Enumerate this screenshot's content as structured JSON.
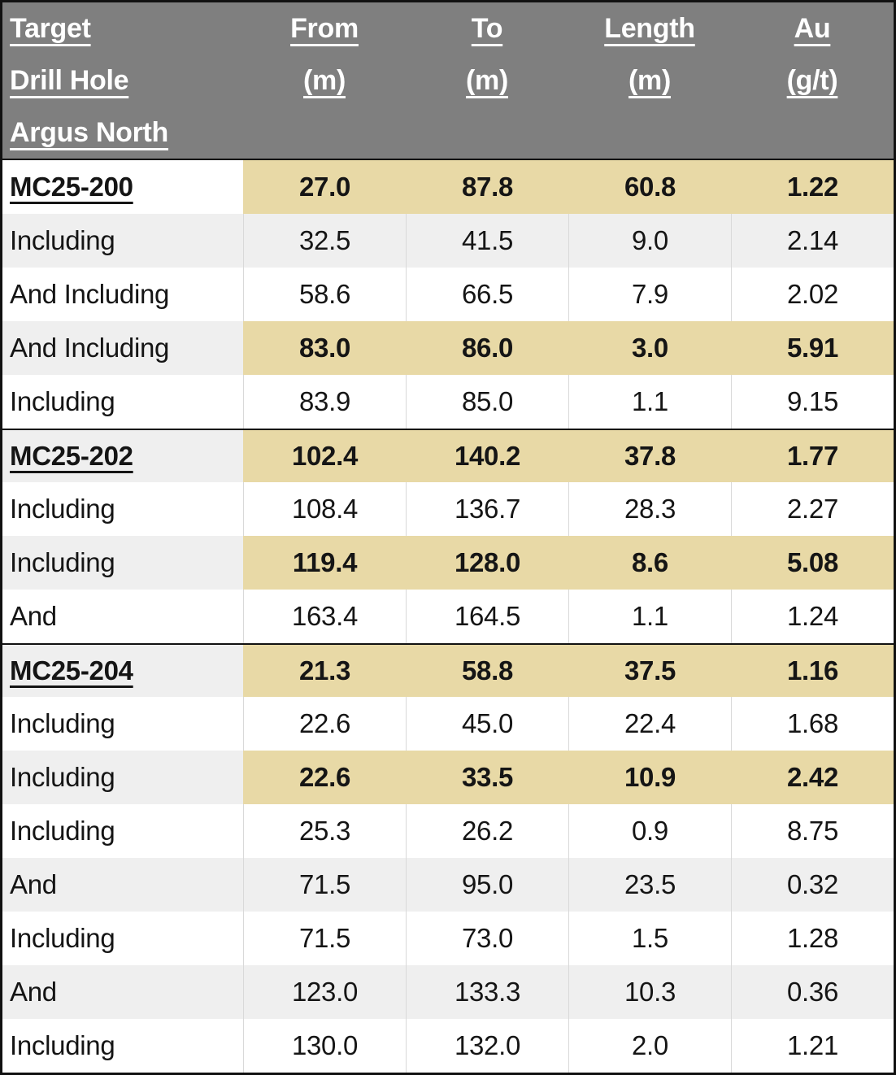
{
  "table": {
    "header": {
      "col1_line1": "Target",
      "col1_line2": "Drill Hole",
      "col1_line3": "Argus North",
      "cols": [
        {
          "title": "From",
          "unit": "(m)"
        },
        {
          "title": "To",
          "unit": "(m)"
        },
        {
          "title": "Length",
          "unit": "(m)"
        },
        {
          "title": "Au",
          "unit": "(g/t)"
        }
      ]
    },
    "colors": {
      "header_bg": "#7f7f7f",
      "band_gray": "#efefef",
      "highlight_tan": "#e8d9a6",
      "gridline": "#d9d9d9",
      "border": "#111111"
    },
    "rows": [
      {
        "label": "MC25-200",
        "kind": "hole",
        "band": "white",
        "highlight": true,
        "divider": false,
        "from": "27.0",
        "to": "87.8",
        "length": "60.8",
        "au": "1.22"
      },
      {
        "label": "Including",
        "kind": "sub",
        "band": "gray",
        "highlight": false,
        "divider": false,
        "from": "32.5",
        "to": "41.5",
        "length": "9.0",
        "au": "2.14"
      },
      {
        "label": "And Including",
        "kind": "sub",
        "band": "white",
        "highlight": false,
        "divider": false,
        "from": "58.6",
        "to": "66.5",
        "length": "7.9",
        "au": "2.02"
      },
      {
        "label": "And Including",
        "kind": "sub",
        "band": "gray",
        "highlight": true,
        "divider": false,
        "from": "83.0",
        "to": "86.0",
        "length": "3.0",
        "au": "5.91"
      },
      {
        "label": "Including",
        "kind": "sub",
        "band": "white",
        "highlight": false,
        "divider": false,
        "from": "83.9",
        "to": "85.0",
        "length": "1.1",
        "au": "9.15"
      },
      {
        "label": "MC25-202",
        "kind": "hole",
        "band": "gray",
        "highlight": true,
        "divider": true,
        "from": "102.4",
        "to": "140.2",
        "length": "37.8",
        "au": "1.77"
      },
      {
        "label": "Including",
        "kind": "sub",
        "band": "white",
        "highlight": false,
        "divider": false,
        "from": "108.4",
        "to": "136.7",
        "length": "28.3",
        "au": "2.27"
      },
      {
        "label": "Including",
        "kind": "sub",
        "band": "gray",
        "highlight": true,
        "divider": false,
        "from": "119.4",
        "to": "128.0",
        "length": "8.6",
        "au": "5.08"
      },
      {
        "label": "And",
        "kind": "sub",
        "band": "white",
        "highlight": false,
        "divider": false,
        "from": "163.4",
        "to": "164.5",
        "length": "1.1",
        "au": "1.24"
      },
      {
        "label": "MC25-204",
        "kind": "hole",
        "band": "gray",
        "highlight": true,
        "divider": true,
        "from": "21.3",
        "to": "58.8",
        "length": "37.5",
        "au": "1.16"
      },
      {
        "label": "Including",
        "kind": "sub",
        "band": "white",
        "highlight": false,
        "divider": false,
        "from": "22.6",
        "to": "45.0",
        "length": "22.4",
        "au": "1.68"
      },
      {
        "label": "Including",
        "kind": "sub",
        "band": "gray",
        "highlight": true,
        "divider": false,
        "from": "22.6",
        "to": "33.5",
        "length": "10.9",
        "au": "2.42"
      },
      {
        "label": "Including",
        "kind": "sub",
        "band": "white",
        "highlight": false,
        "divider": false,
        "from": "25.3",
        "to": "26.2",
        "length": "0.9",
        "au": "8.75"
      },
      {
        "label": "And",
        "kind": "sub",
        "band": "gray",
        "highlight": false,
        "divider": false,
        "from": "71.5",
        "to": "95.0",
        "length": "23.5",
        "au": "0.32"
      },
      {
        "label": "Including",
        "kind": "sub",
        "band": "white",
        "highlight": false,
        "divider": false,
        "from": "71.5",
        "to": "73.0",
        "length": "1.5",
        "au": "1.28"
      },
      {
        "label": "And",
        "kind": "sub",
        "band": "gray",
        "highlight": false,
        "divider": false,
        "from": "123.0",
        "to": "133.3",
        "length": "10.3",
        "au": "0.36"
      },
      {
        "label": "Including",
        "kind": "sub",
        "band": "white",
        "highlight": false,
        "divider": false,
        "from": "130.0",
        "to": "132.0",
        "length": "2.0",
        "au": "1.21"
      }
    ]
  }
}
